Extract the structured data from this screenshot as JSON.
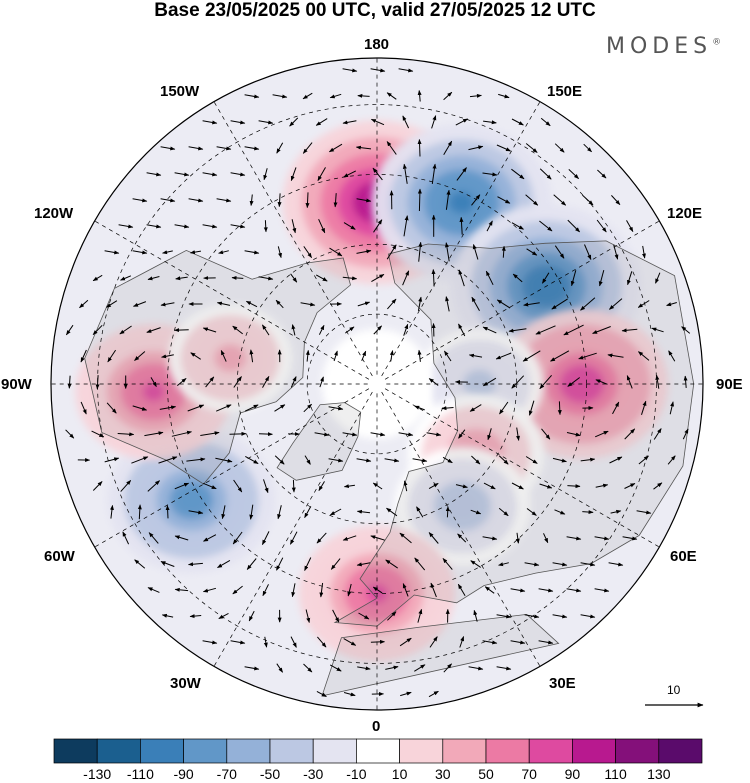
{
  "title": "Base 23/05/2025 00 UTC, valid 27/05/2025 12 UTC",
  "brand": "MODES",
  "brand_mark": "®",
  "longitude_labels": {
    "n180": "180",
    "e150": "150E",
    "e120": "120E",
    "e90": "90E",
    "e60": "60E",
    "e30": "30E",
    "zero": "0",
    "w30": "30W",
    "w60": "60W",
    "w90": "90W",
    "w120": "120W",
    "w150": "150W"
  },
  "reference_vector_label": "10",
  "colorbar": {
    "levels": [
      "-130",
      "-110",
      "-90",
      "-70",
      "-50",
      "-30",
      "-10",
      "10",
      "30",
      "50",
      "70",
      "90",
      "110",
      "130"
    ],
    "colors": [
      "#0d3b5e",
      "#1b5f8f",
      "#3a7fb8",
      "#6197c8",
      "#94b1d8",
      "#bcc8e3",
      "#e4e4f1",
      "#ffffff",
      "#f8d4da",
      "#f2a9b9",
      "#ec7aa4",
      "#de4aa0",
      "#b8198f",
      "#84107a",
      "#5a0b6b"
    ]
  },
  "anomaly_centers": [
    {
      "lon": 180,
      "lat": 51,
      "value": 120,
      "sign": "positive"
    },
    {
      "lon": 155,
      "lat": 47,
      "value": -110,
      "sign": "negative"
    },
    {
      "lon": 120,
      "lat": 48,
      "value": -120,
      "sign": "negative"
    },
    {
      "lon": 90,
      "lat": 46,
      "value": 100,
      "sign": "positive"
    },
    {
      "lon": 90,
      "lat": 68,
      "value": -45,
      "sign": "negative"
    },
    {
      "lon": 55,
      "lat": 64,
      "value": 55,
      "sign": "positive"
    },
    {
      "lon": 35,
      "lat": 58,
      "value": -55,
      "sign": "negative"
    },
    {
      "lon": 0,
      "lat": 45,
      "value": 80,
      "sign": "positive"
    },
    {
      "lon": -58,
      "lat": 43,
      "value": -95,
      "sign": "negative"
    },
    {
      "lon": -88,
      "lat": 42,
      "value": 80,
      "sign": "positive"
    },
    {
      "lon": -100,
      "lat": 58,
      "value": 40,
      "sign": "positive"
    }
  ],
  "colors": {
    "coast": "#555555",
    "grid": "#000000"
  }
}
